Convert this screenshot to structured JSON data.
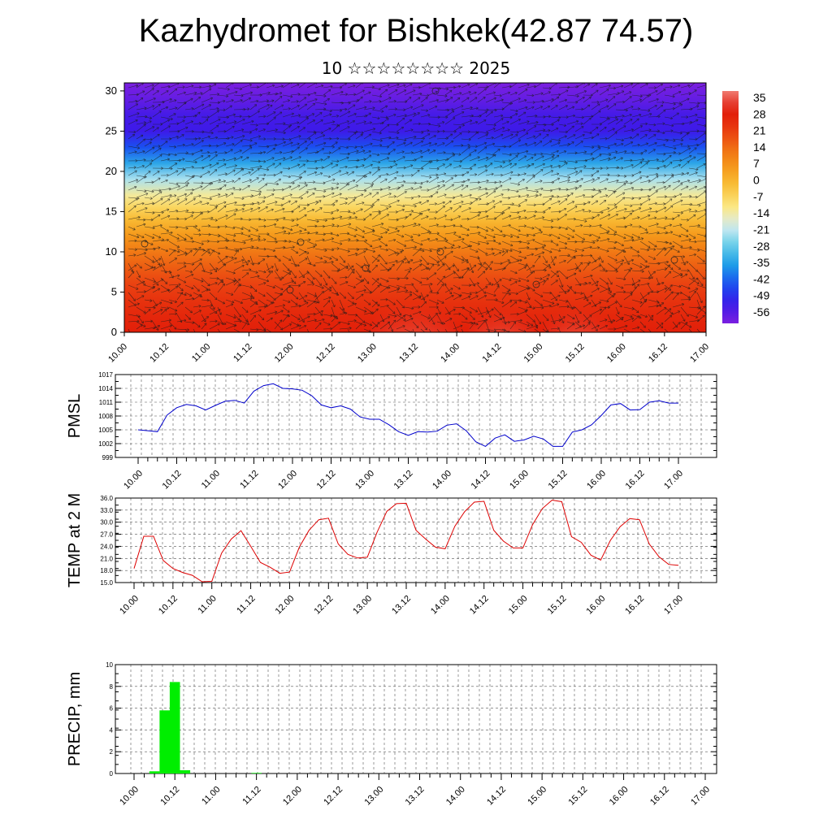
{
  "title": "Kazhydromet for Bishkek(42.87 74.57)",
  "subtitle": "10 ☆☆☆☆☆☆☆☆ 2025",
  "chart_data": [
    {
      "type": "heatmap",
      "variable": "temperature cross-section with wind vectors",
      "x_ticks": [
        "10.00",
        "10.12",
        "11.00",
        "11.12",
        "12.00",
        "12.12",
        "13.00",
        "13.12",
        "14.00",
        "14.12",
        "15.00",
        "15.12",
        "16.00",
        "16.12",
        "17.00"
      ],
      "y_ticks": [
        "0",
        "5",
        "10",
        "15",
        "20",
        "25",
        "30"
      ],
      "ylim": [
        0,
        31
      ],
      "colorbar_labels": [
        "35",
        "28",
        "21",
        "14",
        "7",
        "0",
        "-7",
        "-14",
        "-21",
        "-28",
        "-35",
        "-42",
        "-49",
        "-56"
      ],
      "colorbar_range": [
        -63,
        38
      ],
      "colorscale": [
        "#7b1fe0",
        "#3a1ae8",
        "#1a4ef0",
        "#1e9ce8",
        "#60cde8",
        "#d6ecf2",
        "#fbe886",
        "#f9c43c",
        "#f59b1b",
        "#f07014",
        "#e93b10",
        "#e01808",
        "#f07a70"
      ],
      "levels": [
        {
          "z": 0,
          "t": 28
        },
        {
          "z": 2,
          "t": 26
        },
        {
          "z": 4,
          "t": 23
        },
        {
          "z": 6,
          "t": 20
        },
        {
          "z": 8,
          "t": 16
        },
        {
          "z": 10,
          "t": 11
        },
        {
          "z": 12,
          "t": 5
        },
        {
          "z": 14,
          "t": -2
        },
        {
          "z": 15.5,
          "t": -8
        },
        {
          "z": 17,
          "t": -14
        },
        {
          "z": 19,
          "t": -24
        },
        {
          "z": 21,
          "t": -36
        },
        {
          "z": 23,
          "t": -46
        },
        {
          "z": 25,
          "t": -55
        },
        {
          "z": 27,
          "t": -56
        },
        {
          "z": 29,
          "t": -60
        },
        {
          "z": 31,
          "t": -63
        }
      ]
    },
    {
      "type": "line",
      "ylabel": "PMSL",
      "ylim": [
        999,
        1017
      ],
      "y_ticks": [
        "999",
        "1002",
        "1005",
        "1008",
        "1011",
        "1014",
        "1017"
      ],
      "x_ticks": [
        "10.00",
        "10.12",
        "11.00",
        "11.12",
        "12.00",
        "12.12",
        "13.00",
        "13.12",
        "14.00",
        "14.12",
        "15.00",
        "15.12",
        "16.00",
        "16.12",
        "17.00"
      ],
      "color": "#0000cc",
      "values": [
        1005,
        1004.8,
        1004.6,
        1008.2,
        1009.8,
        1010.5,
        1010.2,
        1009.3,
        1010.3,
        1011.2,
        1011.4,
        1010.8,
        1013.4,
        1014.6,
        1015,
        1014,
        1013.9,
        1013.6,
        1012.4,
        1010.4,
        1009.8,
        1010.2,
        1009.5,
        1007.8,
        1007.3,
        1007.3,
        1006.1,
        1004.6,
        1003.8,
        1004.6,
        1004.5,
        1004.7,
        1006,
        1006.3,
        1004.8,
        1002.4,
        1001.4,
        1003.2,
        1003.9,
        1002.5,
        1002.8,
        1003.6,
        1003,
        1001.4,
        1001.4,
        1004.5,
        1005,
        1006.1,
        1008.1,
        1010.4,
        1010.7,
        1009.3,
        1009.4,
        1011,
        1011.3,
        1010.8,
        1010.8
      ]
    },
    {
      "type": "line",
      "ylabel": "TEMP at 2 M",
      "ylim": [
        15,
        36
      ],
      "y_ticks": [
        "15.0",
        "18.0",
        "21.0",
        "24.0",
        "27.0",
        "30.0",
        "33.0",
        "36.0"
      ],
      "x_ticks": [
        "10.00",
        "10.12",
        "11.00",
        "11.12",
        "12.00",
        "12.12",
        "13.00",
        "13.12",
        "14.00",
        "14.12",
        "15.00",
        "15.12",
        "16.00",
        "16.12",
        "17.00"
      ],
      "color": "#dd0000",
      "values": [
        18.5,
        26.5,
        26.5,
        20.5,
        18.5,
        17.5,
        16.8,
        15.2,
        15.3,
        22.3,
        25.8,
        27.9,
        24,
        20,
        18.8,
        17.3,
        17.6,
        23.8,
        28,
        30.6,
        31,
        24.6,
        22,
        21.1,
        21.3,
        27.5,
        32.7,
        34.6,
        34.7,
        28,
        25.8,
        23.8,
        23.4,
        29,
        32.6,
        35,
        35.2,
        28,
        25.3,
        23.6,
        23.6,
        29.4,
        33.4,
        35.5,
        35.1,
        26.4,
        25,
        21.8,
        20.6,
        25.5,
        28.9,
        30.9,
        30.6,
        24.6,
        21.4,
        19.5,
        19.3
      ]
    },
    {
      "type": "bar",
      "ylabel": "PRECIP, mm",
      "ylim": [
        0,
        10
      ],
      "y_ticks": [
        "0",
        "2",
        "4",
        "6",
        "8",
        "10"
      ],
      "x_ticks": [
        "10.00",
        "10.12",
        "11.00",
        "11.12",
        "12.00",
        "12.12",
        "13.00",
        "13.12",
        "14.00",
        "14.12",
        "15.00",
        "15.12",
        "16.00",
        "16.12",
        "17.00"
      ],
      "color": "#00ee00",
      "values": [
        0,
        0,
        0.2,
        5.8,
        8.4,
        0.3,
        0,
        0,
        0,
        0,
        0,
        0,
        0.05,
        0,
        0,
        0,
        0,
        0,
        0,
        0,
        0,
        0,
        0,
        0,
        0,
        0,
        0,
        0,
        0,
        0,
        0,
        0,
        0,
        0,
        0,
        0,
        0,
        0,
        0,
        0,
        0,
        0,
        0,
        0,
        0,
        0,
        0,
        0,
        0,
        0,
        0,
        0,
        0,
        0,
        0,
        0,
        0
      ]
    }
  ]
}
